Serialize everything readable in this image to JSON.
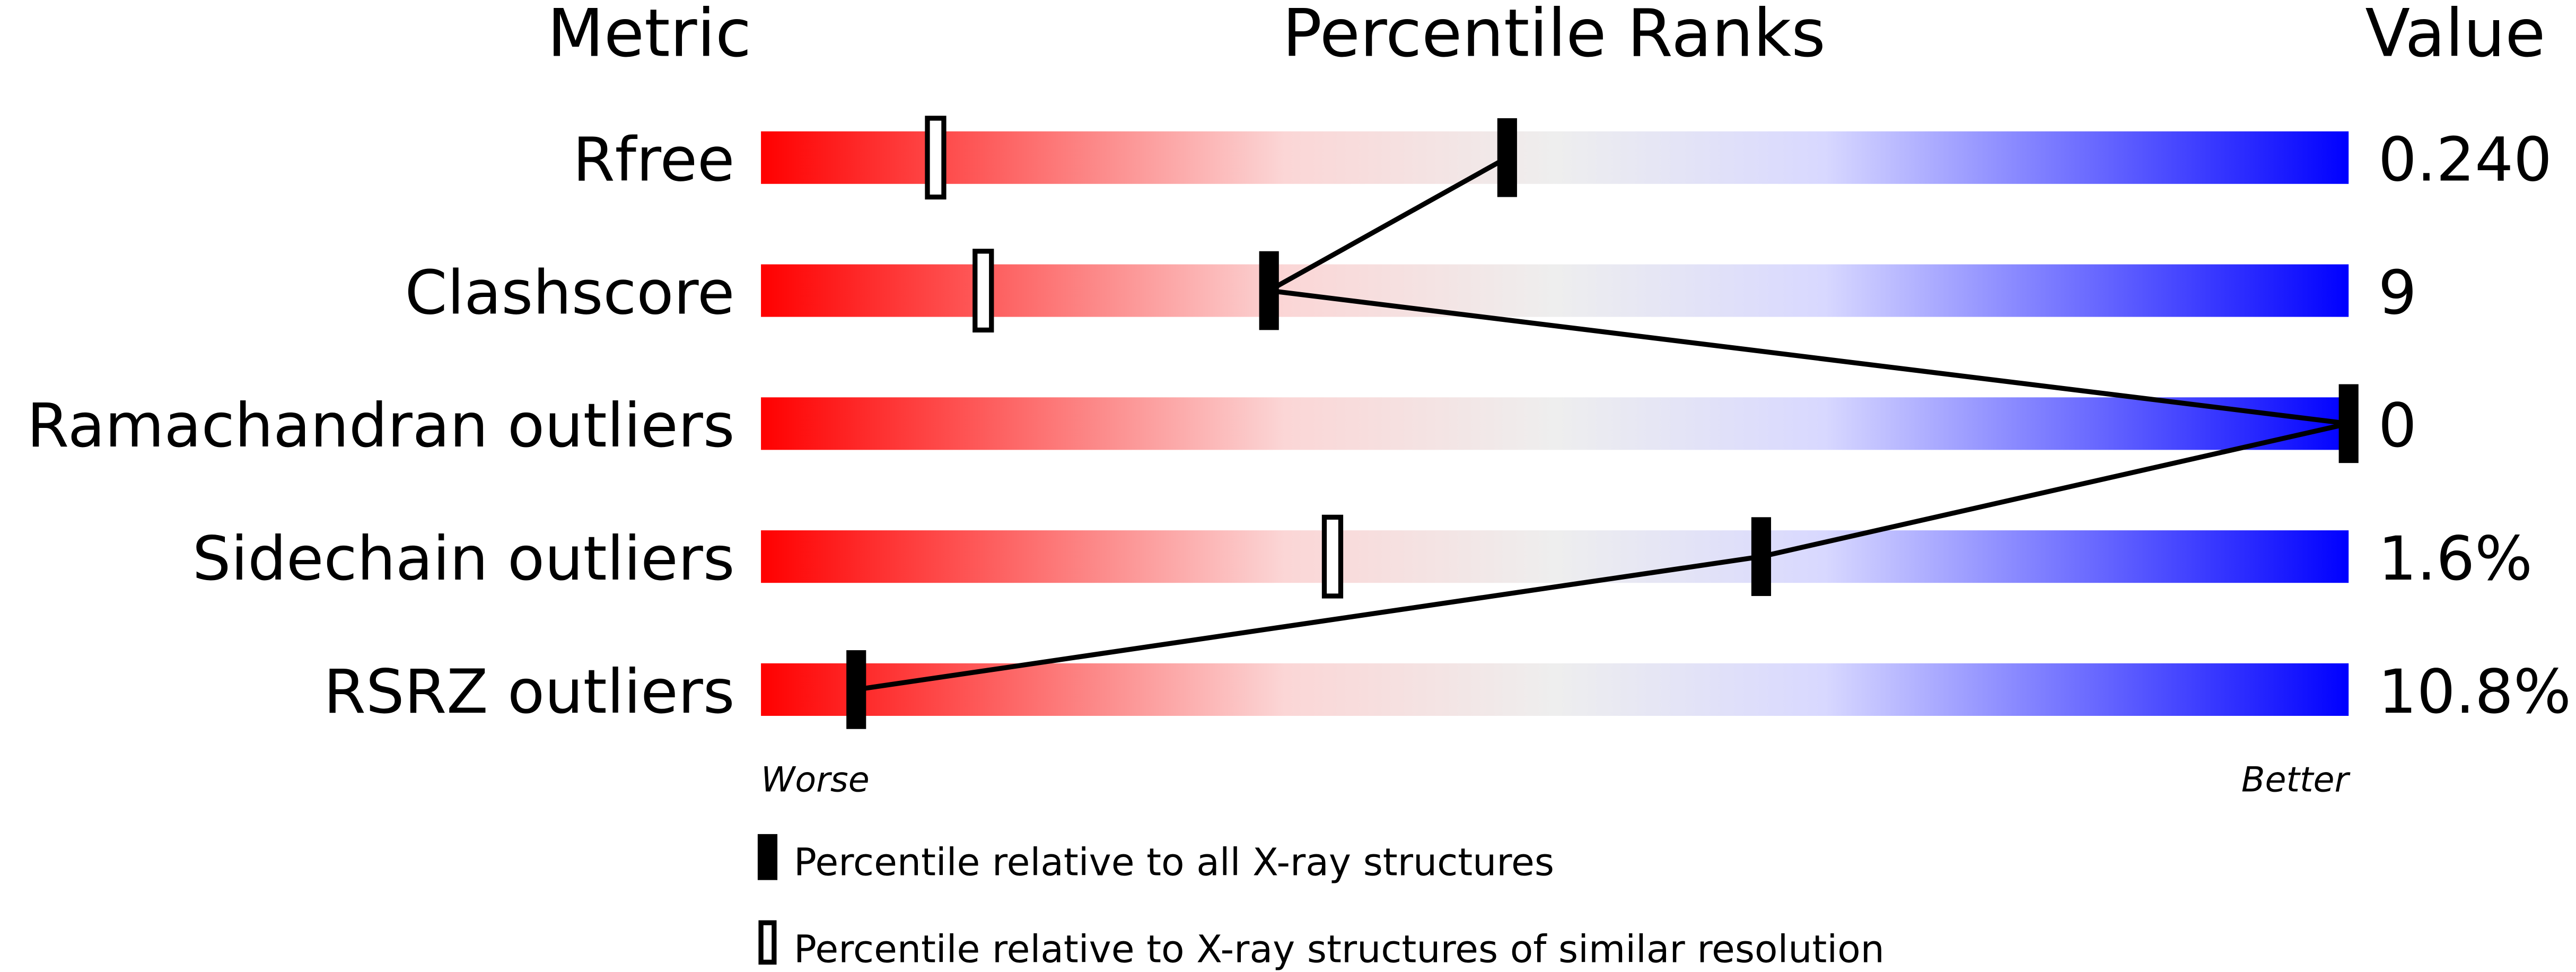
{
  "chart_data": {
    "type": "bar",
    "headers": {
      "metric": "Metric",
      "ranks": "Percentile Ranks",
      "value": "Value"
    },
    "xlim": [
      0,
      100
    ],
    "axis_labels": {
      "left": "Worse",
      "right": "Better"
    },
    "colors": {
      "worse": "#ff0000",
      "middle": "#eeeeee",
      "better": "#0000ff"
    },
    "rows": [
      {
        "metric": "Rfree",
        "value": "0.240",
        "percentile_all": 47,
        "percentile_similar": 11
      },
      {
        "metric": "Clashscore",
        "value": "9",
        "percentile_all": 32,
        "percentile_similar": 14
      },
      {
        "metric": "Ramachandran outliers",
        "value": "0",
        "percentile_all": 100,
        "percentile_similar": null
      },
      {
        "metric": "Sidechain outliers",
        "value": "1.6%",
        "percentile_all": 63,
        "percentile_similar": 36
      },
      {
        "metric": "RSRZ outliers",
        "value": "10.8%",
        "percentile_all": 6,
        "percentile_similar": null
      }
    ],
    "legend": [
      {
        "marker": "filled",
        "label": "Percentile relative to all X-ray structures"
      },
      {
        "marker": "hollow",
        "label": "Percentile relative to X-ray structures of similar resolution"
      }
    ]
  }
}
